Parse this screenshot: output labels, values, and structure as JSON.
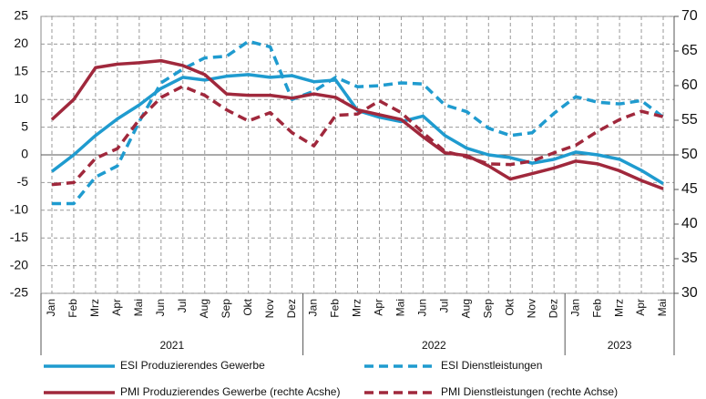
{
  "chart_data": {
    "type": "line",
    "categories": [
      "Jan",
      "Feb",
      "Mrz",
      "Apr",
      "Mai",
      "Jun",
      "Jul",
      "Aug",
      "Sep",
      "Okt",
      "Nov",
      "Dez",
      "Jan",
      "Feb",
      "Mrz",
      "Apr",
      "Mai",
      "Jun",
      "Jul",
      "Aug",
      "Sep",
      "Okt",
      "Nov",
      "Dez",
      "Jan",
      "Feb",
      "Mrz",
      "Apr",
      "Mai"
    ],
    "years": [
      "2021",
      "2022",
      "2023"
    ],
    "ylim": [
      -25,
      25
    ],
    "yticks": [
      -25,
      -20,
      -15,
      -10,
      -5,
      0,
      5,
      10,
      15,
      20,
      25
    ],
    "y2lim": [
      30,
      70
    ],
    "y2ticks": [
      30,
      35,
      40,
      45,
      50,
      55,
      60,
      65,
      70
    ],
    "grid": true,
    "series": [
      {
        "name": "ESI Produzierendes Gewerbe",
        "color": "#1f9bcf",
        "dashed": false,
        "values": [
          -3,
          0,
          3.5,
          6.5,
          9,
          12,
          14,
          13.5,
          14.2,
          14.5,
          14,
          14.3,
          13.2,
          13.5,
          8,
          6.8,
          6,
          7,
          3.5,
          1.2,
          0,
          -0.5,
          -1.5,
          -0.8,
          0.5,
          0,
          -0.8,
          -2.8,
          -5.2
        ]
      },
      {
        "name": "ESI Dienstleistungen",
        "color": "#1f9bcf",
        "dashed": true,
        "values": [
          -8.8,
          -8.8,
          -4,
          -2,
          6,
          13,
          15.5,
          17.5,
          17.8,
          20.5,
          19.5,
          10,
          11.5,
          14,
          12.3,
          12.5,
          13,
          12.8,
          9,
          7.8,
          4.8,
          3.5,
          4,
          7.5,
          10.5,
          9.5,
          9.2,
          9.8,
          6.8
        ]
      },
      {
        "name": "PMI Produzierendes Gewerbe (rechte Acshe)",
        "color": "#a0283c",
        "dashed": false,
        "axis": "y2",
        "values": [
          55.1,
          58,
          62.6,
          63.1,
          63.3,
          63.6,
          62.9,
          61.6,
          58.8,
          58.6,
          58.6,
          58.2,
          58.8,
          58.3,
          56.5,
          55.8,
          55.1,
          52.6,
          50.3,
          49.9,
          48.4,
          46.5,
          47.3,
          48.1,
          49.1,
          48.7,
          47.7,
          46.3,
          45.1
        ]
      },
      {
        "name": "PMI Dienstleistungen (rechte Achse)",
        "color": "#a0283c",
        "dashed": true,
        "axis": "y2",
        "values": [
          45.7,
          46,
          49.5,
          50.9,
          55.1,
          58.3,
          59.9,
          58.6,
          56.5,
          54.9,
          56.1,
          53.2,
          51.3,
          55.7,
          55.9,
          57.8,
          56.1,
          53.2,
          50.5,
          49.7,
          48.7,
          48.6,
          49.1,
          50.3,
          51.4,
          53.4,
          55.1,
          56.3,
          55.5
        ]
      }
    ]
  }
}
